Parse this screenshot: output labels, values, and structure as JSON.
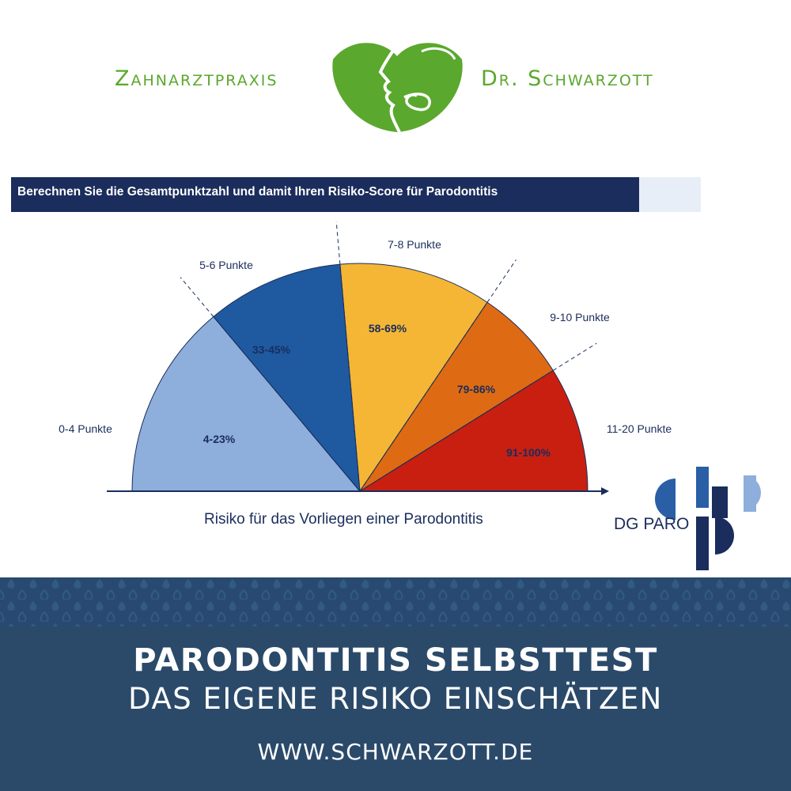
{
  "header": {
    "practice_left": "Zahnarztpraxis",
    "practice_right": "Dr. Schwarzott",
    "brand_color": "#5aa82e",
    "logo_icon": "tooth-profile-logo-icon"
  },
  "chart_title": "Berechnen Sie die Gesamtpunktzahl und damit Ihren Risiko-Score für Parodontitis",
  "chart_data": {
    "type": "pie",
    "shape": "semicircle",
    "title": "Berechnen Sie die Gesamtpunktzahl und damit Ihren Risiko-Score für Parodontitis",
    "xlabel": "Risiko für das Vorliegen einer Parodontitis",
    "segments": [
      {
        "label": "0-4 Punkte",
        "value_label": "4-23%",
        "color": "#8eaedb"
      },
      {
        "label": "5-6 Punkte",
        "value_label": "33-45%",
        "color": "#1f5aa0"
      },
      {
        "label": "7-8 Punkte",
        "value_label": "58-69%",
        "color": "#f5b636"
      },
      {
        "label": "9-10 Punkte",
        "value_label": "79-86%",
        "color": "#de6b13"
      },
      {
        "label": "11-20 Punkte",
        "value_label": "91-100%",
        "color": "#c91f10"
      }
    ]
  },
  "partner_logo": {
    "label": "DG PARO",
    "icon": "dg-paro-logo-icon"
  },
  "footer": {
    "headline": "PARODONTITIS SELBSTTEST",
    "subheadline": "DAS EIGENE RISIKO EINSCHÄTZEN",
    "url": "WWW.SCHWARZOTT.DE",
    "band_color": "#2b4a6a"
  }
}
